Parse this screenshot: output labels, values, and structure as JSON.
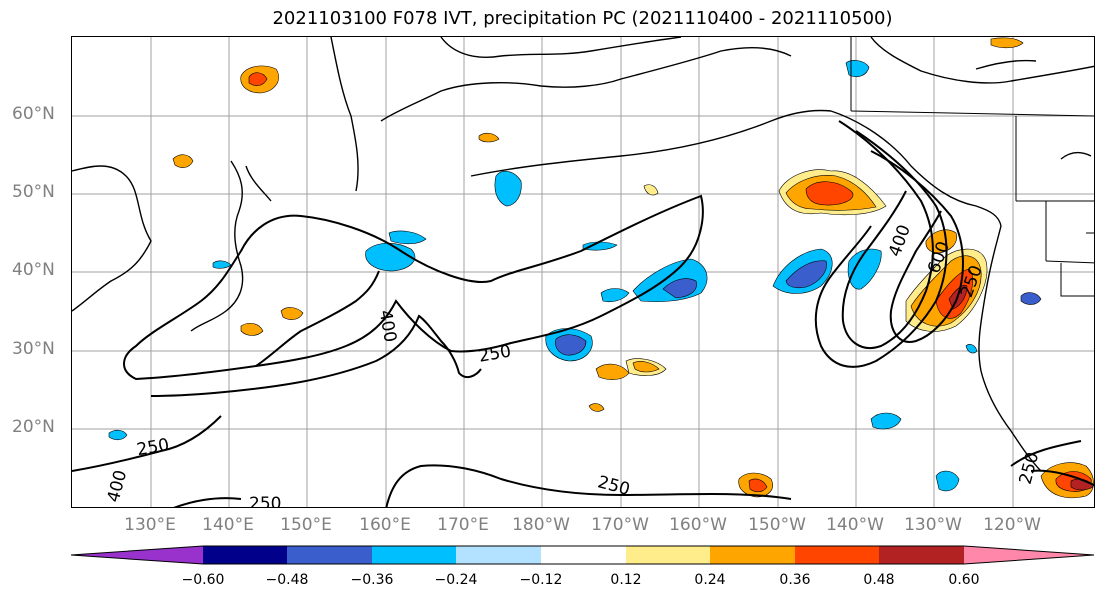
{
  "title": "2021103100 F078 IVT, precipitation PC (2021110400 - 2021110500)",
  "lat_labels": [
    "60°N",
    "50°N",
    "40°N",
    "30°N",
    "20°N"
  ],
  "lon_labels": [
    "130°E",
    "140°E",
    "150°E",
    "160°E",
    "170°E",
    "180°W",
    "170°W",
    "160°W",
    "150°W",
    "140°W",
    "130°W",
    "120°W"
  ],
  "contour_labels": [
    "400",
    "250",
    "400",
    "600",
    "250",
    "250",
    "250",
    "400",
    "250",
    "250"
  ],
  "colorbar": {
    "colors": [
      "#9932cc",
      "#00008b",
      "#3a5fcd",
      "#00bfff",
      "#b2e2ff",
      "#ffffff",
      "#ffec8b",
      "#ffa500",
      "#ff4500",
      "#b22222",
      "#ff88aa"
    ],
    "ticks": [
      "−0.60",
      "−0.48",
      "−0.36",
      "−0.24",
      "−0.12",
      "0.12",
      "0.24",
      "0.36",
      "0.48",
      "0.60"
    ]
  }
}
